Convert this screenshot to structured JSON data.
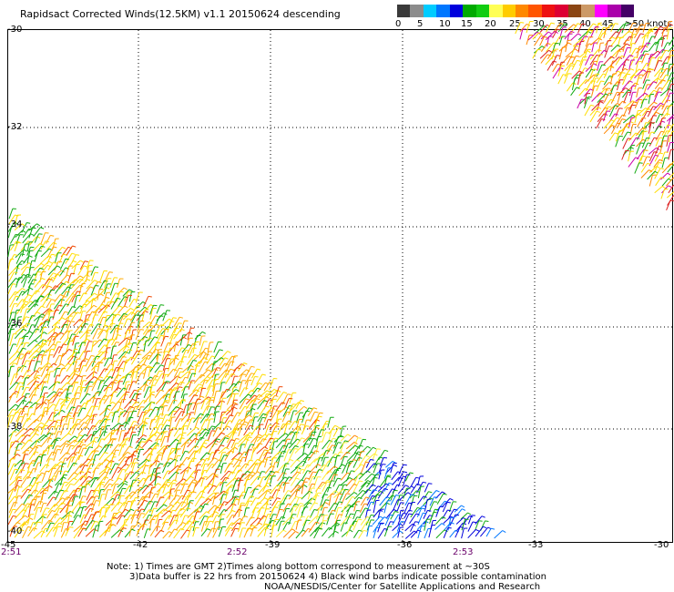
{
  "title": "Rapidsact Corrected Winds(12.5KM) v1.1 20150624 descending",
  "legend": {
    "colors": [
      "#3a3a3a",
      "#8c8c8c",
      "#00ccff",
      "#0077ff",
      "#0000dd",
      "#00aa00",
      "#11cc11",
      "#ffff55",
      "#ffcc00",
      "#ff8800",
      "#ff5500",
      "#ee1111",
      "#dd0033",
      "#8b4513",
      "#cc9966",
      "#ff00ff",
      "#aa00aa",
      "#440066"
    ],
    "ticks": [
      "0",
      "5",
      "10",
      "15",
      "20",
      "25",
      "30",
      "35",
      "40",
      "45",
      ">50 knots"
    ]
  },
  "lat_labels": [
    "-30",
    "-32",
    "-34",
    "-36",
    "-38",
    "-40"
  ],
  "lon_labels": [
    "-45",
    "-42",
    "-39",
    "-36",
    "-33",
    "-30"
  ],
  "time_labels": [
    "2:51",
    "2:52",
    "2:53"
  ],
  "notes": [
    "Note: 1) Times are GMT 2)Times along bottom correspond to measurement at ~30S",
    "3)Data buffer is 22 hrs from 20150624 4) Black wind barbs indicate possible contamination",
    "NOAA/NESDIS/Center for Satellite Applications and Research"
  ]
}
